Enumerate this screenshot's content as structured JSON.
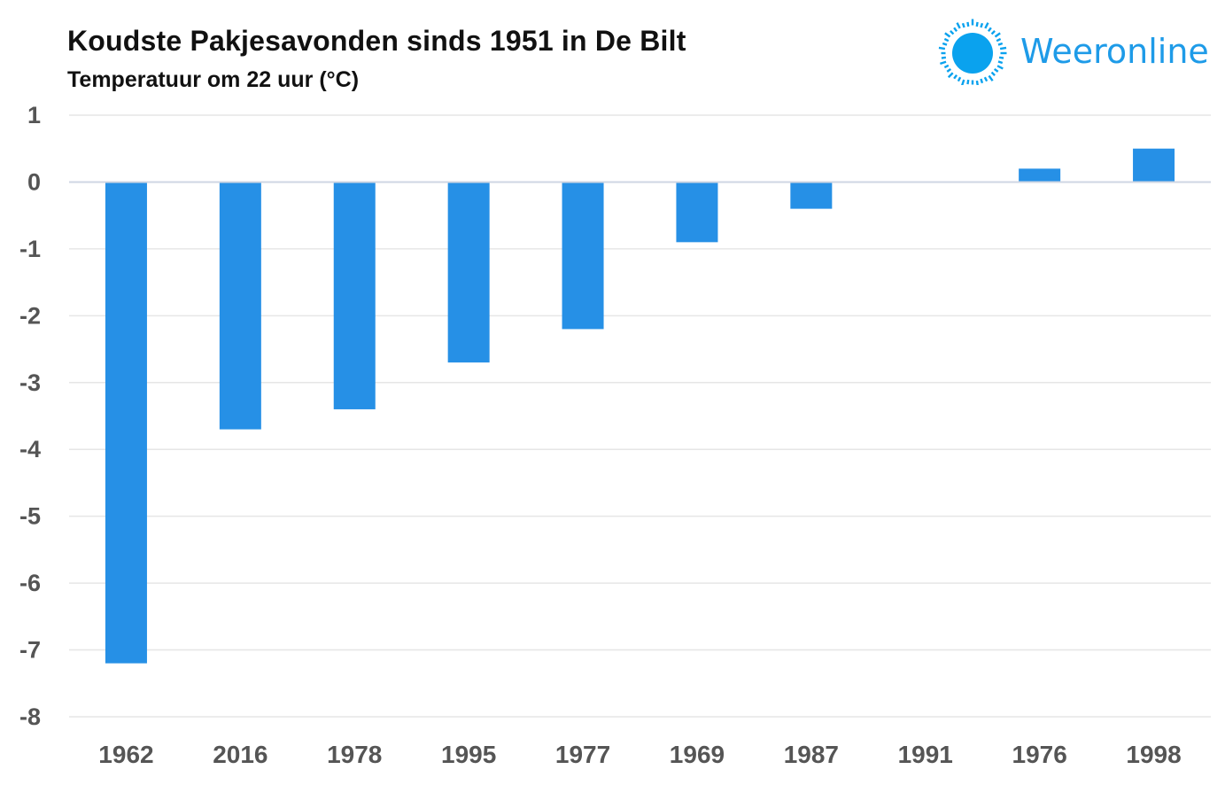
{
  "title": "Koudste Pakjesavonden sinds 1951 in De Bilt",
  "subtitle": "Temperatuur om 22 uur (°C)",
  "brand": {
    "name": "Weeronline",
    "color": "#1e9be8"
  },
  "chart_data": {
    "type": "bar",
    "categories": [
      "1962",
      "2016",
      "1978",
      "1995",
      "1977",
      "1969",
      "1987",
      "1991",
      "1976",
      "1998"
    ],
    "values": [
      -7.2,
      -3.7,
      -3.4,
      -2.7,
      -2.2,
      -0.9,
      -0.4,
      0.0,
      0.2,
      0.5
    ],
    "ylim": [
      -8,
      1
    ],
    "yticks": [
      1,
      0,
      -1,
      -2,
      -3,
      -4,
      -5,
      -6,
      -7,
      -8
    ],
    "bar_color": "#2690e6",
    "grid": true,
    "legend": "none"
  }
}
